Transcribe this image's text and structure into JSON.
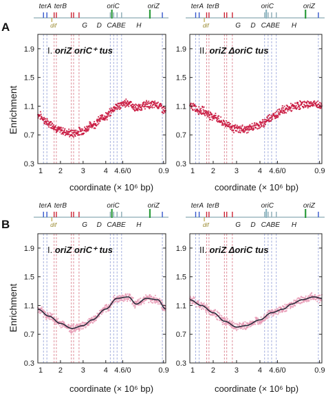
{
  "panel_labels": [
    "A",
    "B"
  ],
  "y_axis_label": "Enrichment",
  "x_axis_label": "coordinate (× 10⁶ bp)",
  "x_ticks": [
    "1",
    "2",
    "3",
    "4",
    "4.6/0",
    "0.9"
  ],
  "y_ticks": [
    "1.9",
    "1.5",
    "1.1",
    "0.7",
    "0.3"
  ],
  "panel_titles": {
    "A_left": {
      "roman": "I.",
      "text": "oriZ oriC⁺ tus"
    },
    "A_right": {
      "roman": "II.",
      "text": "oriZ ΔoriC tus"
    },
    "B_left": {
      "roman": "I.",
      "text": "oriZ oriC⁺ tus"
    },
    "B_right": {
      "roman": "II.",
      "text": "oriZ ΔoriC tus"
    }
  },
  "map_labels": {
    "terA": "terA",
    "terB": "terB",
    "dif": "dif",
    "G": "G",
    "D": "D",
    "CABE": "CABE",
    "H": "H",
    "oriC": "oriC",
    "oriZ": "oriZ"
  },
  "colors": {
    "points": "#c8143c",
    "points_light": "#e89ab5",
    "smooth_line": "#2a2a3a",
    "terA_blue": "#3355cc",
    "ter_red": "#cc2233",
    "oriC_green": "#2a9a3a",
    "oriC_deleted": "#8ab4c0",
    "map_axis": "#8aaab5",
    "dash_blue": "#7a8ad0",
    "dash_red": "#d05a6a"
  },
  "chart_data": [
    {
      "type": "scatter",
      "panel": "A-I",
      "title": "I. oriZ oriC⁺ tus",
      "xlabel": "coordinate (× 10⁶ bp)",
      "ylabel": "Enrichment",
      "ylim": [
        0.3,
        2.1
      ],
      "x_ticks": [
        "1",
        "2",
        "3",
        "4",
        "4.6/0",
        "0.9"
      ],
      "series": [
        {
          "x": [
            0,
            0.5,
            1.0,
            1.5,
            2.0,
            2.4,
            3.0,
            3.5,
            4.0,
            4.35,
            4.8,
            5.3,
            5.65
          ],
          "y": [
            0.98,
            0.86,
            0.76,
            0.72,
            0.76,
            0.84,
            0.96,
            1.1,
            1.15,
            1.07,
            1.12,
            1.12,
            1.03
          ]
        }
      ]
    },
    {
      "type": "scatter",
      "panel": "A-II",
      "title": "II. oriZ ΔoriC tus",
      "xlabel": "coordinate (× 10⁶ bp)",
      "ylabel": "Enrichment",
      "ylim": [
        0.3,
        2.1
      ],
      "x_ticks": [
        "1",
        "2",
        "3",
        "4",
        "4.6/0",
        "0.9"
      ],
      "series": [
        {
          "x": [
            0,
            0.5,
            1.0,
            1.5,
            2.0,
            2.4,
            3.0,
            3.5,
            4.0,
            4.35,
            4.8,
            5.3,
            5.65
          ],
          "y": [
            1.1,
            1.04,
            0.96,
            0.86,
            0.78,
            0.78,
            0.84,
            0.95,
            1.05,
            1.08,
            1.12,
            1.13,
            1.1
          ]
        }
      ]
    },
    {
      "type": "scatter",
      "panel": "B-I",
      "title": "I. oriZ oriC⁺ tus",
      "xlabel": "coordinate (× 10⁶ bp)",
      "ylabel": "Enrichment",
      "ylim": [
        0.3,
        2.1
      ],
      "x_ticks": [
        "1",
        "2",
        "3",
        "4",
        "4.6/0",
        "0.9"
      ],
      "series": [
        {
          "x": [
            0,
            0.5,
            1.0,
            1.5,
            2.0,
            2.4,
            3.0,
            3.5,
            4.0,
            4.35,
            4.8,
            5.3,
            5.65
          ],
          "y": [
            1.05,
            0.95,
            0.85,
            0.78,
            0.82,
            0.9,
            1.05,
            1.2,
            1.22,
            1.12,
            1.2,
            1.18,
            1.05
          ]
        }
      ]
    },
    {
      "type": "scatter",
      "panel": "B-II",
      "title": "II. oriZ ΔoriC tus",
      "xlabel": "coordinate (× 10⁶ bp)",
      "ylabel": "Enrichment",
      "ylim": [
        0.3,
        2.1
      ],
      "x_ticks": [
        "1",
        "2",
        "3",
        "4",
        "4.6/0",
        "0.9"
      ],
      "series": [
        {
          "x": [
            0,
            0.5,
            1.0,
            1.5,
            2.0,
            2.4,
            3.0,
            3.5,
            4.0,
            4.35,
            4.8,
            5.3,
            5.65
          ],
          "y": [
            1.18,
            1.1,
            1.0,
            0.88,
            0.8,
            0.82,
            0.9,
            1.0,
            1.05,
            1.12,
            1.18,
            1.22,
            1.2
          ]
        }
      ]
    }
  ]
}
